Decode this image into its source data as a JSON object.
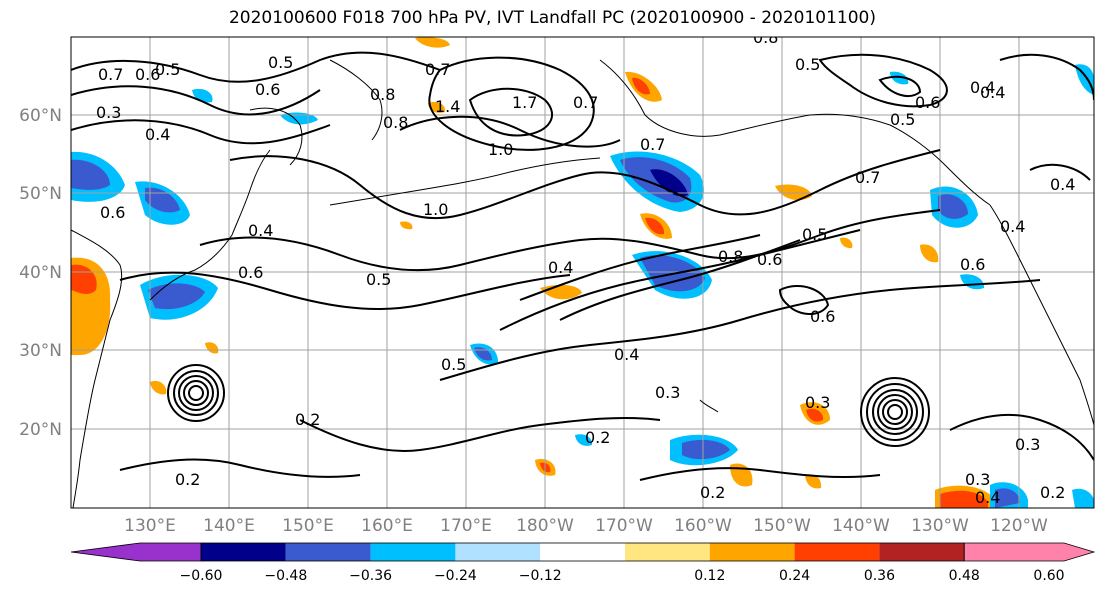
{
  "title": "2020100600 F018 700 hPa PV, IVT Landfall PC (2020100900 - 2020101100)",
  "lat_labels": [
    "60°N",
    "50°N",
    "40°N",
    "30°N",
    "20°N"
  ],
  "lon_labels": [
    "130°E",
    "140°E",
    "150°E",
    "160°E",
    "170°E",
    "180°W",
    "170°W",
    "160°W",
    "150°W",
    "140°W",
    "130°W",
    "120°W"
  ],
  "colorbar": {
    "tick_labels": [
      "−0.60",
      "−0.48",
      "−0.36",
      "−0.24",
      "−0.12",
      "0.12",
      "0.24",
      "0.36",
      "0.48",
      "0.60"
    ],
    "colors": [
      "#9932cc",
      "#00008b",
      "#3a5bd0",
      "#00bfff",
      "#b0e2ff",
      "#ffffff",
      "#ffe680",
      "#ffa500",
      "#ff4000",
      "#b22222",
      "#ff82ab"
    ]
  },
  "contour_labels": [
    "0.7",
    "0.6",
    "0.5",
    "0.5",
    "0.6",
    "0.3",
    "0.4",
    "0.8",
    "0.7",
    "1.4",
    "1.7",
    "0.7",
    "1.0",
    "1.0",
    "0.8",
    "0.5",
    "0.6",
    "0.4",
    "0.6",
    "0.4",
    "0.5",
    "0.4",
    "0.8",
    "0.7",
    "0.6",
    "0.5",
    "0.4",
    "0.8",
    "0.6",
    "0.5",
    "0.4",
    "0.3",
    "0.2",
    "0.2",
    "0.2",
    "0.2",
    "0.3",
    "0.3",
    "0.4",
    "0.2",
    "0.6",
    "0.7",
    "0.5",
    "0.4",
    "0.4",
    "0.6",
    "0.3"
  ]
}
